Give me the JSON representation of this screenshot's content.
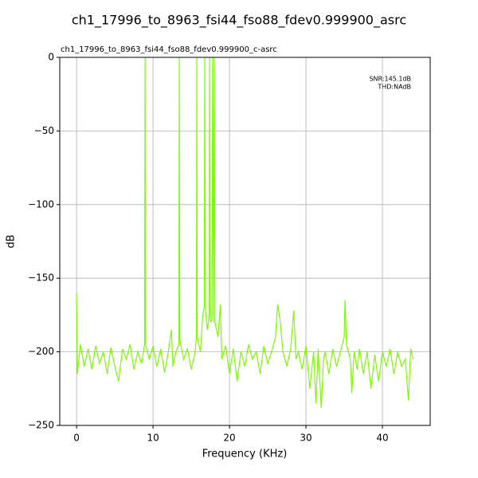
{
  "chart_data": {
    "type": "line",
    "title": "ch1_17996_to_8963_fsi44_fso88_fdev0.999900_asrc",
    "subtitle": "ch1_17996_to_8963_fsi44_fso88_fdev0.999900_c-asrc",
    "annotations": [
      "SNR:145.1dB",
      "THD:NAdB"
    ],
    "x_label": "Frequency (KHz)",
    "y_label": "dB",
    "color": "#7cfc00",
    "grid": true,
    "xlim": [
      -2.2,
      46.25
    ],
    "ylim": [
      -250,
      0
    ],
    "xticks": [
      0,
      10,
      20,
      30,
      40
    ],
    "yticks": [
      {
        "value": -250,
        "label": "−250"
      },
      {
        "value": -200,
        "label": "−200"
      },
      {
        "value": -150,
        "label": "−150"
      },
      {
        "value": -100,
        "label": "−100"
      },
      {
        "value": -50,
        "label": "−50"
      },
      0
    ],
    "x": [
      0,
      0.1,
      0.5,
      1,
      1.5,
      2,
      2.5,
      3,
      3.5,
      4,
      4.5,
      5,
      5.5,
      6,
      6.5,
      7,
      7.5,
      8,
      8.5,
      8.9,
      8.96,
      9.02,
      9.5,
      10,
      10.5,
      11,
      11.5,
      12,
      12.4,
      12.6,
      13,
      13.38,
      13.44,
      13.5,
      14,
      14.5,
      15,
      15.5,
      15.68,
      15.73,
      15.78,
      16.2,
      16.5,
      16.7,
      16.77,
      16.85,
      17.1,
      17.35,
      17.4,
      17.5,
      17.7,
      17.8,
      17.9,
      18.0,
      18.1,
      18.5,
      18.8,
      19,
      19.5,
      20,
      20.5,
      21,
      21.5,
      22,
      22.5,
      23,
      23.5,
      24,
      24.5,
      25,
      25.5,
      26,
      26.3,
      26.6,
      27,
      27.5,
      28,
      28.4,
      28.7,
      29,
      29.5,
      30,
      30.5,
      31,
      31.3,
      31.6,
      32,
      32.3,
      32.5,
      33,
      33.5,
      34,
      34.5,
      35,
      35.1,
      35.3,
      35.8,
      36,
      36.3,
      36.7,
      37,
      37.5,
      38,
      38.5,
      39,
      39.5,
      40,
      40.5,
      41,
      41.5,
      42,
      42.5,
      43,
      43.4,
      43.7,
      44
    ],
    "values": [
      -160,
      -215,
      -195,
      -210,
      -198,
      -212,
      -196,
      -208,
      -200,
      -215,
      -197,
      -210,
      -220,
      -198,
      -205,
      -195,
      -212,
      -200,
      -208,
      -195,
      0,
      -195,
      -205,
      -196,
      -210,
      -198,
      -214,
      -200,
      -185,
      -210,
      -200,
      -195,
      0,
      -192,
      -205,
      -198,
      -212,
      -200,
      -190,
      0,
      -190,
      -200,
      -175,
      -170,
      0,
      -172,
      -185,
      -175,
      0,
      -180,
      -178,
      0,
      -180,
      0,
      -180,
      -190,
      -168,
      -205,
      -196,
      -215,
      -198,
      -220,
      -200,
      -210,
      -195,
      -205,
      -200,
      -215,
      -196,
      -208,
      -200,
      -190,
      -168,
      -178,
      -200,
      -210,
      -198,
      -172,
      -205,
      -200,
      -212,
      -196,
      -225,
      -200,
      -235,
      -198,
      -238,
      -205,
      -200,
      -215,
      -198,
      -210,
      -200,
      -190,
      -165,
      -195,
      -205,
      -228,
      -200,
      -212,
      -198,
      -215,
      -200,
      -225,
      -202,
      -220,
      -200,
      -210,
      -198,
      -215,
      -200,
      -210,
      -205,
      -233,
      -198,
      -205
    ]
  }
}
